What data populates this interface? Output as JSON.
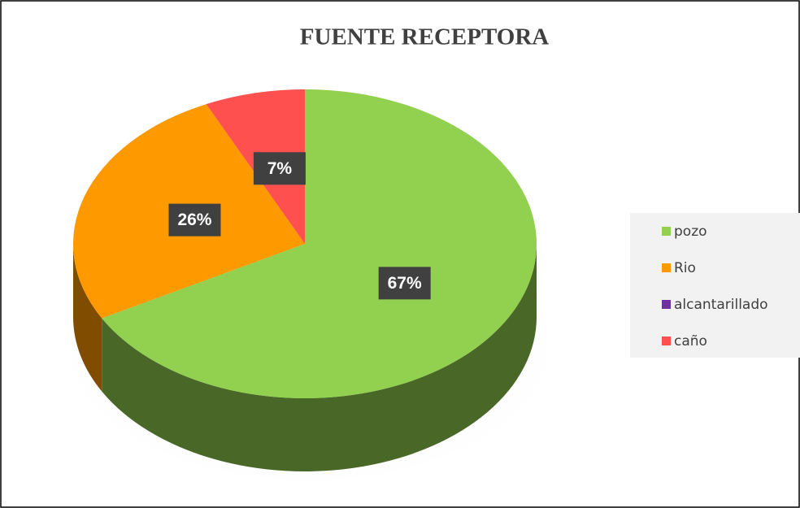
{
  "chart_data": {
    "type": "pie",
    "title": "FUENTE RECEPTORA",
    "categories": [
      "pozo",
      "Rio",
      "alcantarillado",
      "caño"
    ],
    "values": [
      67,
      26,
      0,
      7
    ],
    "value_labels": [
      "67%",
      "26%",
      null,
      "7%"
    ],
    "colors": [
      "#92d050",
      "#ff9900",
      "#7030a0",
      "#ff5050"
    ],
    "legend": "right"
  }
}
